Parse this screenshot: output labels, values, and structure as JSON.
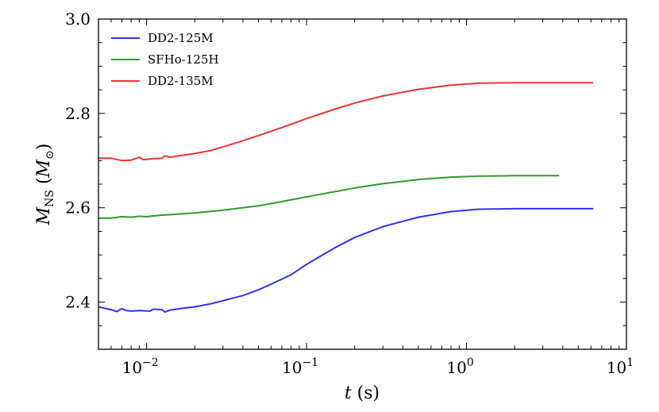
{
  "chart_data": {
    "type": "line",
    "title": "",
    "xlabel": "t (s)",
    "xlabel_var": "t",
    "xlabel_unit": " (s)",
    "ylabel": "M_NS (M_⊙)",
    "ylabel_var": "M",
    "ylabel_sub": "NS",
    "ylabel_unit_open": " (",
    "ylabel_unit_var": "M",
    "ylabel_unit_sub": "⊙",
    "ylabel_unit_close": ")",
    "xscale": "log",
    "xlim": [
      0.005,
      10
    ],
    "ylim": [
      2.3,
      3.0
    ],
    "grid": false,
    "legend_position": "upper-left",
    "x_ticks": [
      {
        "value": 0.01,
        "base": "10",
        "exp": "−2"
      },
      {
        "value": 0.1,
        "base": "10",
        "exp": "−1"
      },
      {
        "value": 1,
        "base": "10",
        "exp": "0"
      },
      {
        "value": 10,
        "base": "10",
        "exp": "1"
      }
    ],
    "y_ticks": [
      {
        "value": 2.4,
        "label": "2.4"
      },
      {
        "value": 2.6,
        "label": "2.6"
      },
      {
        "value": 2.8,
        "label": "2.8"
      },
      {
        "value": 3.0,
        "label": "3.0"
      }
    ],
    "series": [
      {
        "name": "DD2-125M",
        "color": "#3333ee",
        "points": [
          [
            0.005,
            2.39
          ],
          [
            0.006,
            2.384
          ],
          [
            0.0065,
            2.38
          ],
          [
            0.007,
            2.386
          ],
          [
            0.0075,
            2.382
          ],
          [
            0.008,
            2.381
          ],
          [
            0.009,
            2.382
          ],
          [
            0.0105,
            2.381
          ],
          [
            0.011,
            2.385
          ],
          [
            0.0125,
            2.384
          ],
          [
            0.013,
            2.379
          ],
          [
            0.014,
            2.383
          ],
          [
            0.016,
            2.386
          ],
          [
            0.02,
            2.39
          ],
          [
            0.025,
            2.396
          ],
          [
            0.03,
            2.403
          ],
          [
            0.04,
            2.414
          ],
          [
            0.05,
            2.426
          ],
          [
            0.06,
            2.438
          ],
          [
            0.08,
            2.458
          ],
          [
            0.1,
            2.48
          ],
          [
            0.15,
            2.515
          ],
          [
            0.2,
            2.537
          ],
          [
            0.3,
            2.56
          ],
          [
            0.5,
            2.58
          ],
          [
            0.8,
            2.592
          ],
          [
            1.2,
            2.597
          ],
          [
            2.0,
            2.598
          ],
          [
            6.2,
            2.598
          ]
        ]
      },
      {
        "name": "SFHo-125H",
        "color": "#339933",
        "points": [
          [
            0.005,
            2.578
          ],
          [
            0.006,
            2.578
          ],
          [
            0.007,
            2.581
          ],
          [
            0.008,
            2.58
          ],
          [
            0.009,
            2.582
          ],
          [
            0.01,
            2.581
          ],
          [
            0.012,
            2.584
          ],
          [
            0.015,
            2.586
          ],
          [
            0.02,
            2.589
          ],
          [
            0.03,
            2.595
          ],
          [
            0.05,
            2.604
          ],
          [
            0.07,
            2.613
          ],
          [
            0.1,
            2.623
          ],
          [
            0.2,
            2.642
          ],
          [
            0.3,
            2.651
          ],
          [
            0.5,
            2.66
          ],
          [
            0.8,
            2.665
          ],
          [
            1.2,
            2.667
          ],
          [
            2.0,
            2.668
          ],
          [
            3.8,
            2.668
          ]
        ]
      },
      {
        "name": "DD2-135M",
        "color": "#ee3333",
        "points": [
          [
            0.005,
            2.705
          ],
          [
            0.006,
            2.705
          ],
          [
            0.007,
            2.7
          ],
          [
            0.008,
            2.701
          ],
          [
            0.0085,
            2.704
          ],
          [
            0.009,
            2.707
          ],
          [
            0.0095,
            2.702
          ],
          [
            0.011,
            2.704
          ],
          [
            0.0125,
            2.705
          ],
          [
            0.013,
            2.71
          ],
          [
            0.014,
            2.707
          ],
          [
            0.016,
            2.71
          ],
          [
            0.02,
            2.715
          ],
          [
            0.025,
            2.721
          ],
          [
            0.03,
            2.729
          ],
          [
            0.04,
            2.742
          ],
          [
            0.05,
            2.753
          ],
          [
            0.07,
            2.77
          ],
          [
            0.1,
            2.789
          ],
          [
            0.15,
            2.809
          ],
          [
            0.2,
            2.822
          ],
          [
            0.3,
            2.837
          ],
          [
            0.5,
            2.851
          ],
          [
            0.8,
            2.86
          ],
          [
            1.2,
            2.864
          ],
          [
            2.0,
            2.865
          ],
          [
            6.2,
            2.865
          ]
        ]
      }
    ]
  }
}
